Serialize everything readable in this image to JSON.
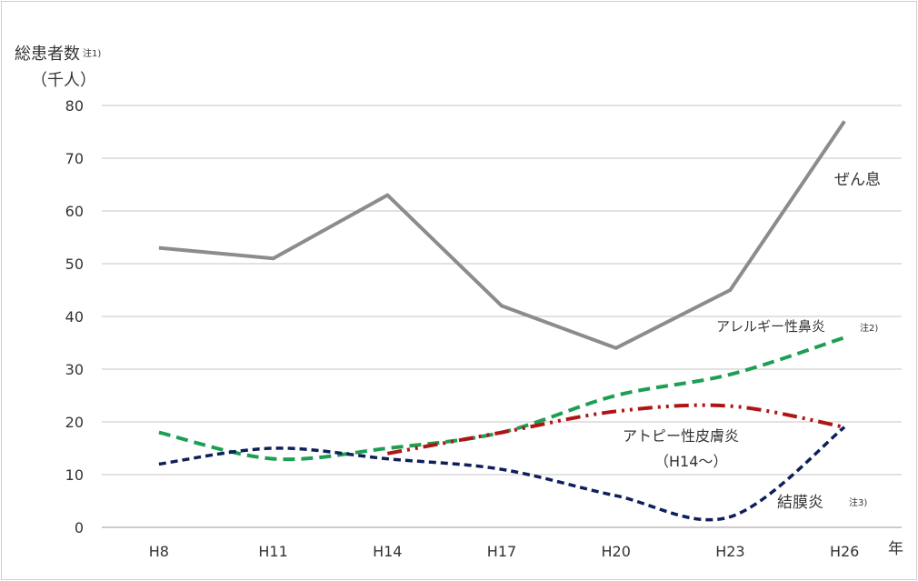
{
  "chart_data": {
    "type": "line",
    "ylabel": "総患者数",
    "ylabel_note": "注1)",
    "yunit": "（千人）",
    "xlabel": "年",
    "categories": [
      "H8",
      "H11",
      "H14",
      "H17",
      "H20",
      "H23",
      "H26"
    ],
    "ylim": [
      0,
      80
    ],
    "yticks": [
      0,
      10,
      20,
      30,
      40,
      50,
      60,
      70,
      80
    ],
    "grid": true,
    "series": [
      {
        "name": "ぜん息",
        "note": "",
        "values": [
          53,
          51,
          63,
          42,
          34,
          45,
          77
        ],
        "color": "#8c8c8c",
        "style": "solid"
      },
      {
        "name": "アレルギー性鼻炎",
        "note": "注2)",
        "values": [
          18,
          13,
          15,
          18,
          25,
          29,
          36
        ],
        "color": "#1e9e55",
        "style": "dashed"
      },
      {
        "name": "アトピー性皮膚炎",
        "name_line2": "（H14～）",
        "note": "",
        "values": [
          null,
          null,
          14,
          18,
          22,
          23,
          19
        ],
        "color": "#b01515",
        "style": "dash-dot"
      },
      {
        "name": "結膜炎",
        "note": "注3)",
        "values": [
          12,
          15,
          13,
          11,
          6,
          2,
          19
        ],
        "color": "#0e1f5a",
        "style": "short-dash"
      }
    ]
  }
}
